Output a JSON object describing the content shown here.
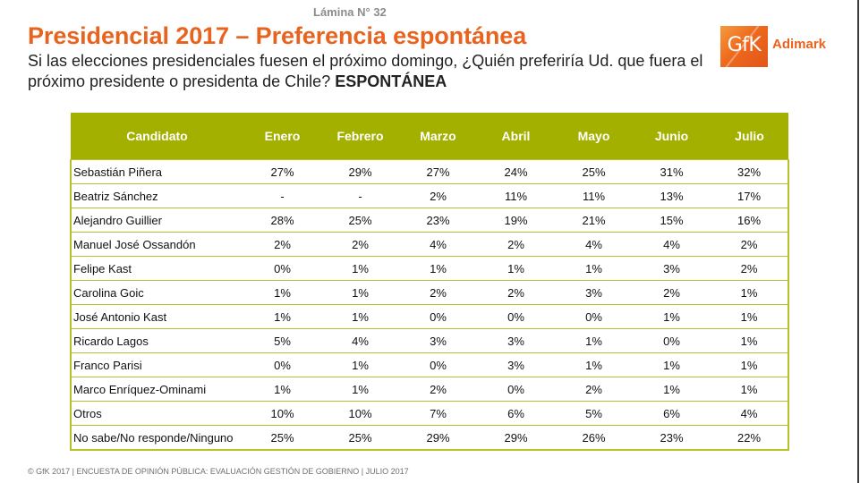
{
  "slide": {
    "number_label": "Lámina N° 32",
    "title": "Presidencial 2017 – Preferencia espontánea",
    "subtitle": "Si las elecciones presidenciales fuesen el próximo domingo, ¿Quién preferiría Ud. que fuera el próximo presidente o presidenta de Chile?",
    "subtitle_emphasis": "ESPONTÁNEA",
    "footer": "© GfK 2017 | ENCUESTA DE OPINIÓN PÚBLICA: EVALUACIÓN GESTIÓN DE GOBIERNO | JULIO 2017"
  },
  "logo": {
    "mark": "GfK",
    "brand": "Adimark",
    "color": "#e8641e"
  },
  "colors": {
    "header_bg": "#a3b000",
    "row_border": "#b5c22a",
    "title": "#e8641e"
  },
  "table": {
    "headers": [
      "Candidato",
      "Enero",
      "Febrero",
      "Marzo",
      "Abril",
      "Mayo",
      "Junio",
      "Julio"
    ],
    "rows": [
      {
        "name": "Sebastián Piñera",
        "values": [
          "27%",
          "29%",
          "27%",
          "24%",
          "25%",
          "31%",
          "32%"
        ]
      },
      {
        "name": "Beatriz Sánchez",
        "values": [
          "-",
          "-",
          "2%",
          "11%",
          "11%",
          "13%",
          "17%"
        ]
      },
      {
        "name": "Alejandro Guillier",
        "values": [
          "28%",
          "25%",
          "23%",
          "19%",
          "21%",
          "15%",
          "16%"
        ]
      },
      {
        "name": "Manuel José Ossandón",
        "values": [
          "2%",
          "2%",
          "4%",
          "2%",
          "4%",
          "4%",
          "2%"
        ]
      },
      {
        "name": "Felipe Kast",
        "values": [
          "0%",
          "1%",
          "1%",
          "1%",
          "1%",
          "3%",
          "2%"
        ]
      },
      {
        "name": "Carolina Goic",
        "values": [
          "1%",
          "1%",
          "2%",
          "2%",
          "3%",
          "2%",
          "1%"
        ]
      },
      {
        "name": "José Antonio Kast",
        "values": [
          "1%",
          "1%",
          "0%",
          "0%",
          "0%",
          "1%",
          "1%"
        ]
      },
      {
        "name": "Ricardo Lagos",
        "values": [
          "5%",
          "4%",
          "3%",
          "3%",
          "1%",
          "0%",
          "1%"
        ]
      },
      {
        "name": "Franco Parisi",
        "values": [
          "0%",
          "1%",
          "0%",
          "3%",
          "1%",
          "1%",
          "1%"
        ]
      },
      {
        "name": "Marco Enríquez-Ominami",
        "values": [
          "1%",
          "1%",
          "2%",
          "0%",
          "2%",
          "1%",
          "1%"
        ]
      },
      {
        "name": "Otros",
        "values": [
          "10%",
          "10%",
          "7%",
          "6%",
          "5%",
          "6%",
          "4%"
        ]
      },
      {
        "name": "No sabe/No responde/Ninguno",
        "values": [
          "25%",
          "25%",
          "29%",
          "29%",
          "26%",
          "23%",
          "22%"
        ]
      }
    ]
  }
}
